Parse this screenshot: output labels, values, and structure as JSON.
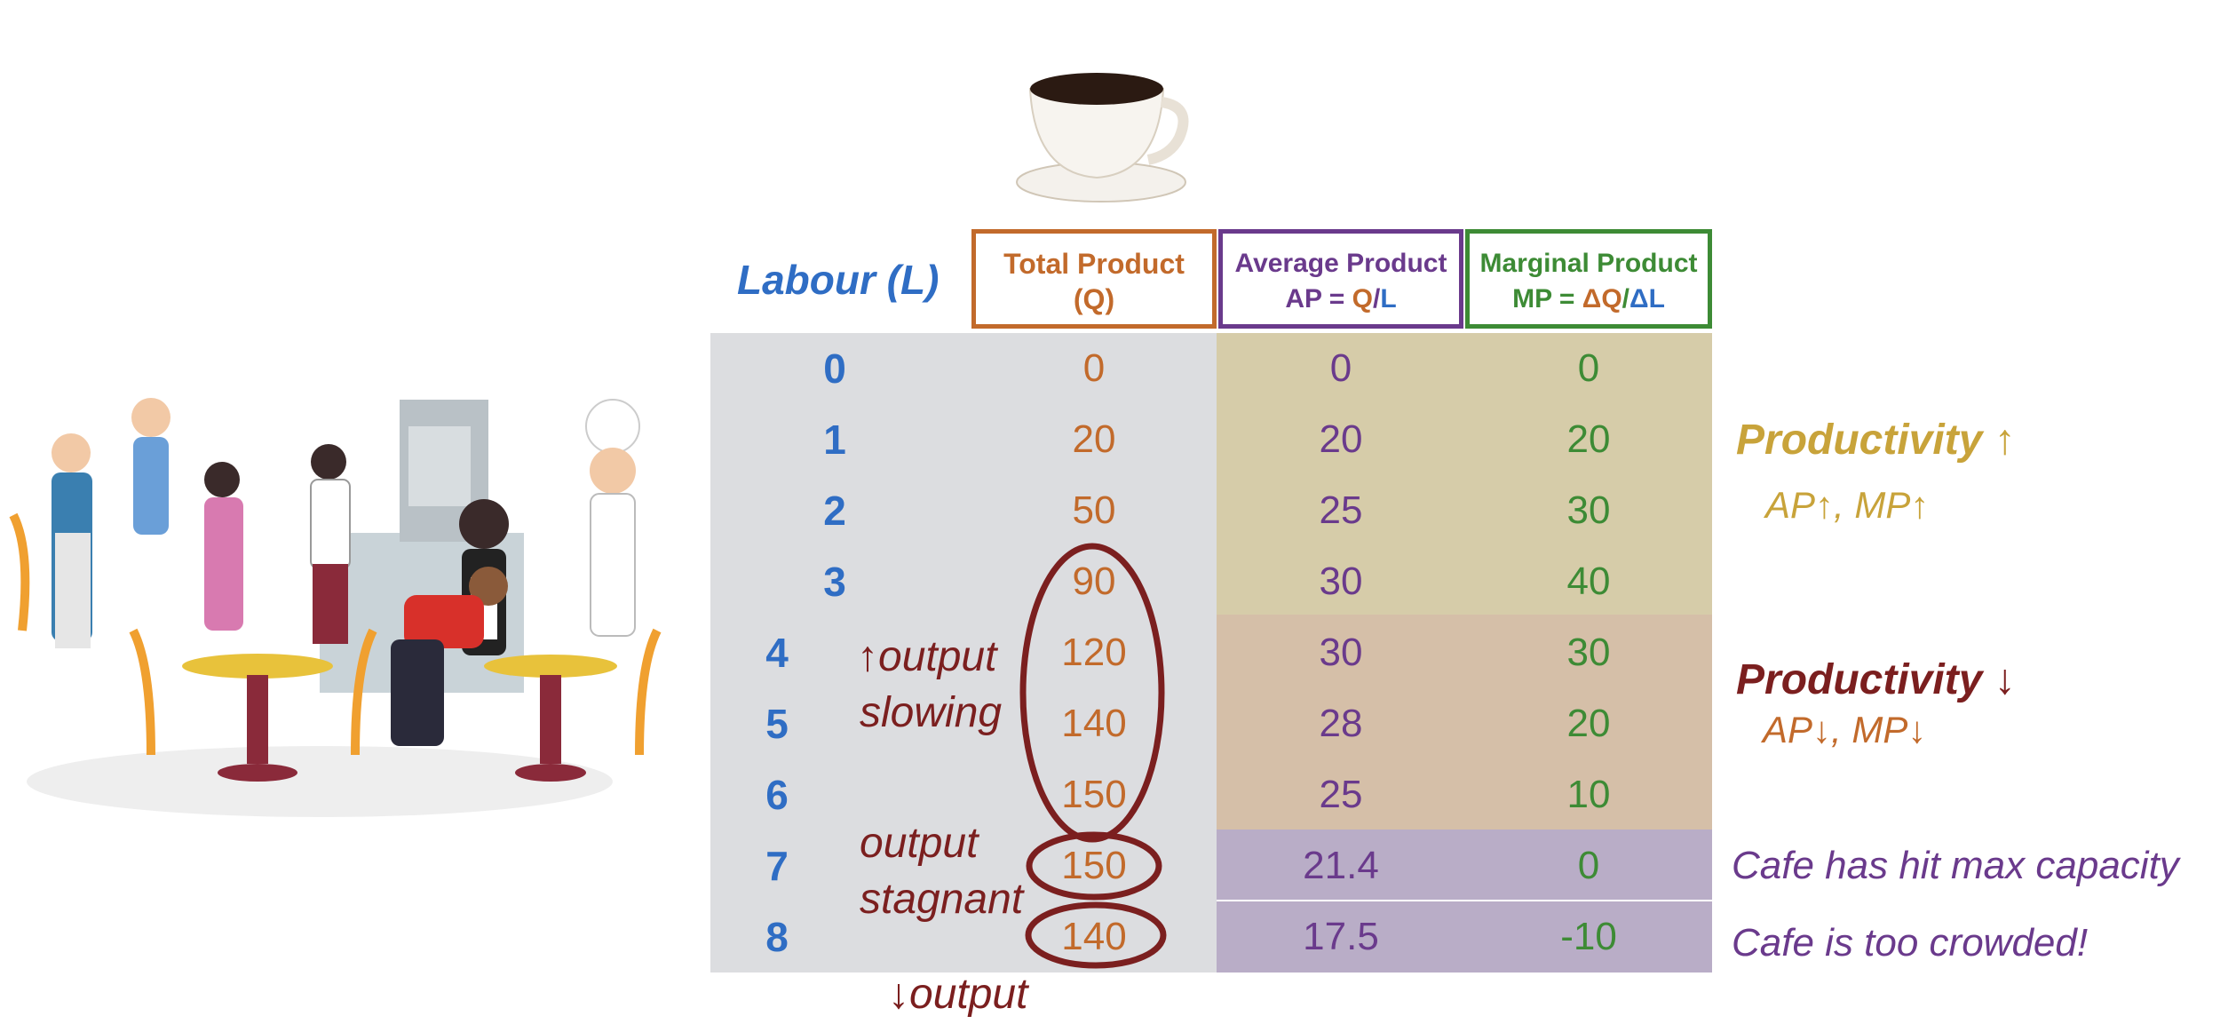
{
  "header": {
    "labour": "Labour (L)",
    "tp_line1": "Total Product",
    "tp_line2": "(Q)",
    "ap_line1": "Average Product",
    "ap_prefix": "AP = ",
    "ap_q": "Q",
    "ap_slash": "/",
    "ap_l": "L",
    "mp_line1": "Marginal Product",
    "mp_prefix": "MP = ",
    "mp_q": "ΔQ",
    "mp_slash": "/",
    "mp_l": "ΔL"
  },
  "rows": [
    {
      "l": "0",
      "tp": "0",
      "ap": "0",
      "mp": "0"
    },
    {
      "l": "1",
      "tp": "20",
      "ap": "20",
      "mp": "20"
    },
    {
      "l": "2",
      "tp": "50",
      "ap": "25",
      "mp": "30"
    },
    {
      "l": "3",
      "tp": "90",
      "ap": "30",
      "mp": "40"
    },
    {
      "l": "4",
      "tp": "120",
      "ap": "30",
      "mp": "30"
    },
    {
      "l": "5",
      "tp": "140",
      "ap": "28",
      "mp": "20"
    },
    {
      "l": "6",
      "tp": "150",
      "ap": "25",
      "mp": "10"
    },
    {
      "l": "7",
      "tp": "150",
      "ap": "21.4",
      "mp": "0"
    },
    {
      "l": "8",
      "tp": "140",
      "ap": "17.5",
      "mp": "-10"
    }
  ],
  "annotations": {
    "up_output": "↑output",
    "slowing": "slowing",
    "output2": "output",
    "stagnant": "stagnant",
    "down_output": "↓output",
    "prod_up_title": "Productivity ↑",
    "prod_up_sub": "AP↑, MP↑",
    "prod_down_title": "Productivity ↓",
    "prod_down_sub": "AP↓, MP↓",
    "max_capacity": "Cafe has hit max capacity",
    "crowded": "Cafe is too crowded!"
  },
  "colors": {
    "labour": "#2f6dc4",
    "total_product": "#c26a2b",
    "average_product": "#6a3a8c",
    "marginal_product": "#3d8b35",
    "productivity_up": "#c8a33a",
    "productivity_down": "#7b1f1f",
    "ellipse": "#7b1f1f"
  },
  "images": {
    "left": "cafe-staff-illustration",
    "top": "coffee-cup-icon"
  }
}
